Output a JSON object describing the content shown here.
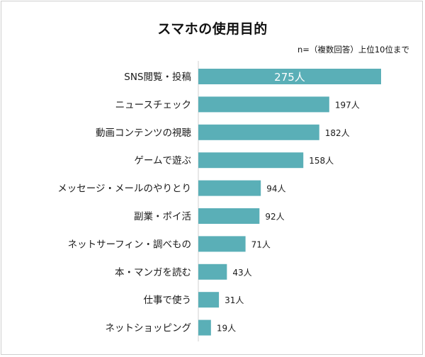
{
  "chart_data": {
    "type": "bar",
    "orientation": "horizontal",
    "title": "スマホの使用目的",
    "note": "n=（複数回答）上位10位まで",
    "categories": [
      "SNS閲覧・投稿",
      "ニュースチェック",
      "動画コンテンツの視聴",
      "ゲームで遊ぶ",
      "メッセージ・メールのやりとり",
      "副業・ポイ活",
      "ネットサーフィン・調べもの",
      "本・マンガを読む",
      "仕事で使う",
      "ネットショッピング"
    ],
    "values": [
      275,
      197,
      182,
      158,
      94,
      92,
      71,
      43,
      31,
      19
    ],
    "value_labels": [
      "275人",
      "197人",
      "182人",
      "158人",
      "94人",
      "92人",
      "71人",
      "43人",
      "31人",
      "19人"
    ],
    "xlim": [
      0,
      275
    ],
    "grid": false,
    "bar_color": "#5aafb7"
  }
}
